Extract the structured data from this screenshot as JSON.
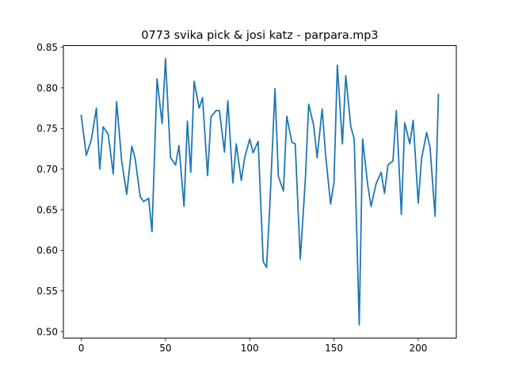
{
  "chart_data": {
    "type": "line",
    "title": "0773 svika pick & josi katz - parpara.mp3",
    "xlabel": "",
    "ylabel": "",
    "xlim": [
      -10.6,
      222.6
    ],
    "ylim": [
      0.492,
      0.852
    ],
    "xticks": [
      0,
      50,
      100,
      150,
      200
    ],
    "yticks": [
      0.5,
      0.55,
      0.6,
      0.65,
      0.7,
      0.75,
      0.8,
      0.85
    ],
    "xtick_labels": [
      "0",
      "50",
      "100",
      "150",
      "200"
    ],
    "ytick_labels": [
      "0.50",
      "0.55",
      "0.60",
      "0.65",
      "0.70",
      "0.75",
      "0.80",
      "0.85"
    ],
    "grid": false,
    "legend": "none",
    "series": [
      {
        "color": "#1f77b4",
        "x": [
          0,
          3,
          6,
          9,
          11,
          13,
          16,
          19,
          21,
          24,
          27,
          30,
          32,
          35,
          37,
          40,
          42,
          45,
          48,
          50,
          53,
          56,
          58,
          61,
          63,
          65,
          67,
          70,
          72,
          75,
          77,
          80,
          82,
          85,
          87,
          90,
          92,
          95,
          97,
          100,
          102,
          105,
          108,
          110,
          112,
          115,
          117,
          120,
          122,
          125,
          127,
          130,
          133,
          135,
          138,
          140,
          143,
          145,
          148,
          150,
          152,
          155,
          157,
          160,
          162,
          165,
          167,
          170,
          172,
          175,
          178,
          180,
          182,
          185,
          187,
          190,
          192,
          195,
          197,
          200,
          202,
          205,
          207,
          210,
          212
        ],
        "values": [
          0.766,
          0.717,
          0.736,
          0.775,
          0.7,
          0.752,
          0.743,
          0.694,
          0.783,
          0.71,
          0.669,
          0.728,
          0.713,
          0.666,
          0.66,
          0.664,
          0.623,
          0.811,
          0.756,
          0.836,
          0.714,
          0.705,
          0.729,
          0.654,
          0.759,
          0.696,
          0.808,
          0.775,
          0.788,
          0.692,
          0.764,
          0.772,
          0.772,
          0.721,
          0.784,
          0.683,
          0.731,
          0.686,
          0.714,
          0.737,
          0.72,
          0.734,
          0.586,
          0.579,
          0.658,
          0.799,
          0.691,
          0.673,
          0.765,
          0.733,
          0.731,
          0.589,
          0.687,
          0.78,
          0.753,
          0.714,
          0.774,
          0.718,
          0.657,
          0.684,
          0.828,
          0.731,
          0.815,
          0.752,
          0.737,
          0.508,
          0.737,
          0.681,
          0.654,
          0.682,
          0.696,
          0.67,
          0.705,
          0.71,
          0.772,
          0.644,
          0.757,
          0.731,
          0.76,
          0.658,
          0.713,
          0.745,
          0.727,
          0.642,
          0.792
        ]
      }
    ]
  }
}
